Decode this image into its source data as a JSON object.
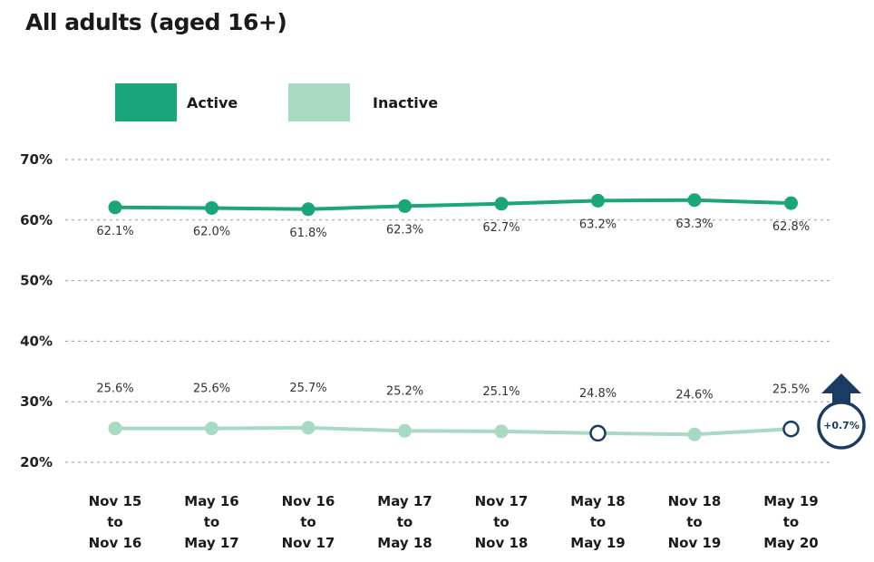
{
  "title": "All adults (aged 16+)",
  "colors": {
    "active": "#1aa57a",
    "inactive": "#a8d9c3",
    "highlight": "#1a3b63",
    "grid": "#999999"
  },
  "annotation": {
    "change_label": "+0.7%",
    "icon": "up-arrow-icon"
  },
  "chart_data": {
    "type": "line",
    "title": "All adults (aged 16+)",
    "xlabel": "",
    "ylabel": "",
    "ylim": [
      20,
      70
    ],
    "yticks": [
      20,
      30,
      40,
      50,
      60,
      70
    ],
    "ytick_labels": [
      "20%",
      "30%",
      "40%",
      "50%",
      "60%",
      "70%"
    ],
    "grid": true,
    "legend": "top-left",
    "categories": [
      [
        "Nov 15",
        "to",
        "Nov 16"
      ],
      [
        "May 16",
        "to",
        "May 17"
      ],
      [
        "Nov 16",
        "to",
        "Nov 17"
      ],
      [
        "May 17",
        "to",
        "May 18"
      ],
      [
        "Nov 17",
        "to",
        "Nov 18"
      ],
      [
        "May 18",
        "to",
        "May 19"
      ],
      [
        "Nov 18",
        "to",
        "Nov 19"
      ],
      [
        "May 19",
        "to",
        "May 20"
      ]
    ],
    "series": [
      {
        "name": "Active",
        "values": [
          62.1,
          62.0,
          61.8,
          62.3,
          62.7,
          63.2,
          63.3,
          62.8
        ],
        "labels": [
          "62.1%",
          "62.0%",
          "61.8%",
          "62.3%",
          "62.7%",
          "63.2%",
          "63.3%",
          "62.8%"
        ]
      },
      {
        "name": "Inactive",
        "values": [
          25.6,
          25.6,
          25.7,
          25.2,
          25.1,
          24.8,
          24.6,
          25.5
        ],
        "labels": [
          "25.6%",
          "25.6%",
          "25.7%",
          "25.2%",
          "25.1%",
          "24.8%",
          "24.6%",
          "25.5%"
        ],
        "highlighted_points": [
          5,
          7
        ]
      }
    ]
  }
}
